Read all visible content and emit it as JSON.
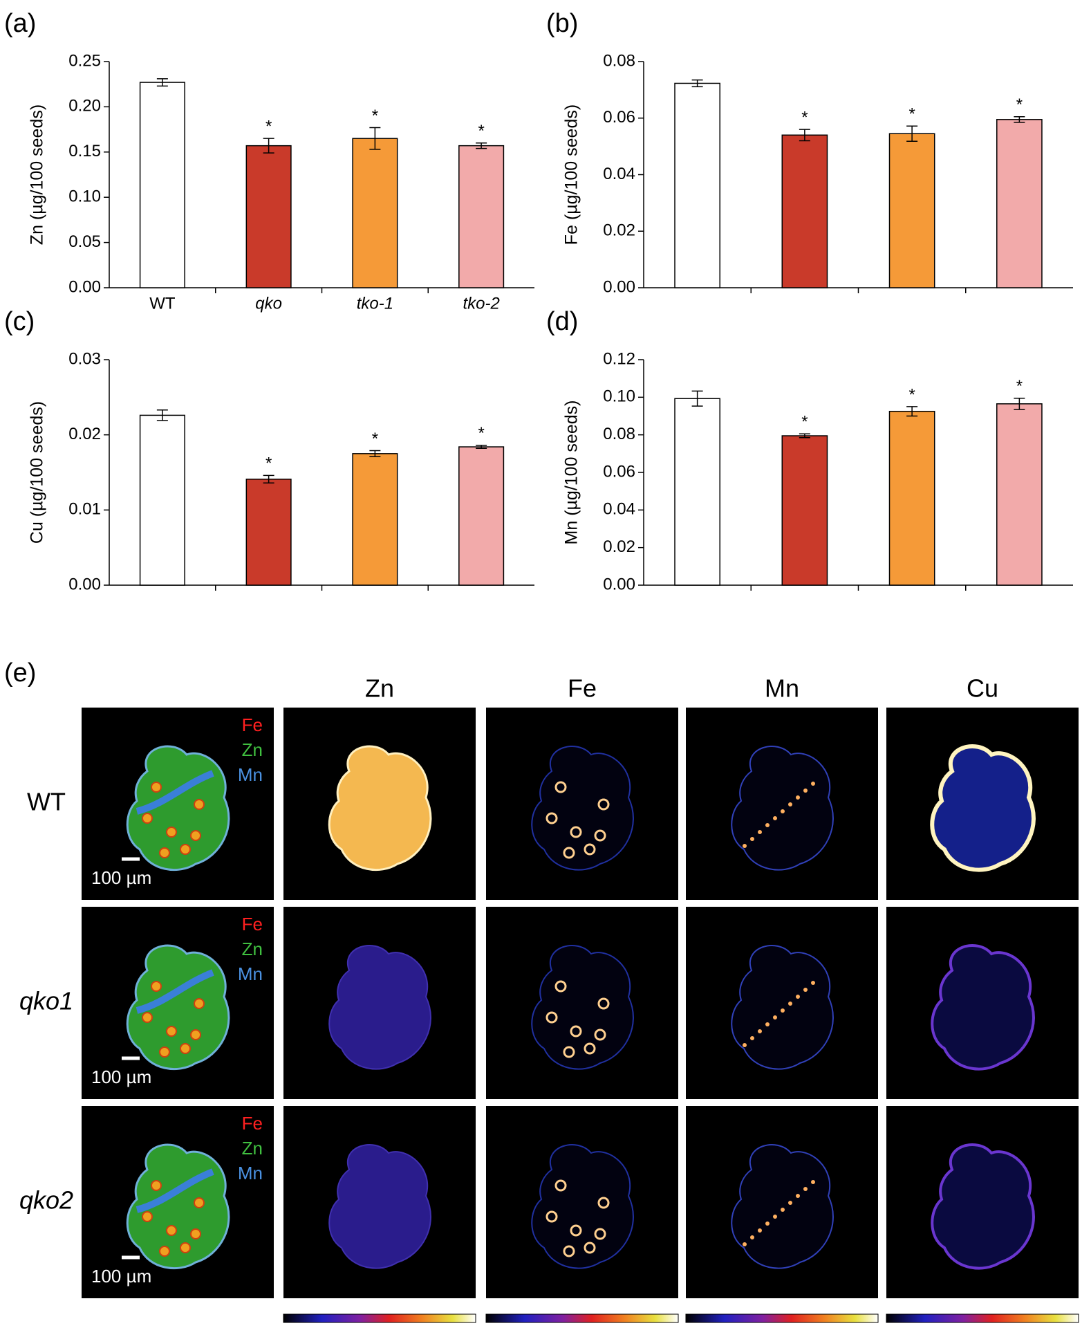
{
  "chart_data": [
    {
      "type": "bar",
      "panel_label": "(a)",
      "y_label": "Zn (µg/100 seeds)",
      "categories": [
        "WT",
        "qko",
        "tko-1",
        "tko-2"
      ],
      "values": [
        0.227,
        0.157,
        0.165,
        0.157
      ],
      "errors": [
        0.004,
        0.008,
        0.012,
        0.003
      ],
      "annotations": [
        null,
        "*",
        "*",
        "*"
      ],
      "colors": [
        "#ffffff",
        "#c93a2a",
        "#f59a38",
        "#f2aaaa"
      ],
      "ylim": [
        0,
        0.25
      ],
      "yticks": [
        {
          "value": 0,
          "label": "0.00"
        },
        0.05,
        {
          "value": 0.1,
          "label": "0.10"
        },
        0.15,
        {
          "value": 0.2,
          "label": "0.20"
        },
        0.25
      ]
    },
    {
      "type": "bar",
      "panel_label": "(b)",
      "y_label": "Fe (µg/100 seeds)",
      "categories": [
        null,
        null,
        null,
        null
      ],
      "values": [
        0.0723,
        0.054,
        0.0545,
        0.0595
      ],
      "errors": [
        0.0012,
        0.002,
        0.0027,
        0.001
      ],
      "annotations": [
        null,
        "*",
        "*",
        "*"
      ],
      "colors": [
        "#ffffff",
        "#c93a2a",
        "#f59a38",
        "#f2aaaa"
      ],
      "ylim": [
        0,
        0.08
      ],
      "yticks": [
        {
          "value": 0,
          "label": "0.00"
        },
        0.02,
        0.04,
        0.06,
        0.08
      ]
    },
    {
      "type": "bar",
      "panel_label": "(c)",
      "y_label": "Cu (µg/100 seeds)",
      "categories": [
        null,
        null,
        null,
        null
      ],
      "values": [
        0.0226,
        0.0141,
        0.0175,
        0.0184
      ],
      "errors": [
        0.0007,
        0.0005,
        0.0004,
        0.0002
      ],
      "annotations": [
        null,
        "*",
        "*",
        "*"
      ],
      "colors": [
        "#ffffff",
        "#c93a2a",
        "#f59a38",
        "#f2aaaa"
      ],
      "ylim": [
        0,
        0.03
      ],
      "yticks": [
        {
          "value": 0,
          "label": "0.00"
        },
        0.01,
        0.02,
        0.03
      ]
    },
    {
      "type": "bar",
      "panel_label": "(d)",
      "y_label": "Mn (µg/100 seeds)",
      "categories": [
        null,
        null,
        null,
        null
      ],
      "values": [
        0.0993,
        0.0795,
        0.0925,
        0.0965
      ],
      "errors": [
        0.004,
        0.001,
        0.0025,
        0.003
      ],
      "annotations": [
        null,
        "*",
        "*",
        "*"
      ],
      "colors": [
        "#ffffff",
        "#c93a2a",
        "#f59a38",
        "#f2aaaa"
      ],
      "ylim": [
        0,
        0.12
      ],
      "yticks": [
        {
          "value": 0,
          "label": "0.00"
        },
        0.02,
        0.04,
        0.06,
        0.08,
        {
          "value": 0.1,
          "label": "0.10"
        },
        0.12
      ]
    }
  ],
  "panel_e": {
    "label": "(e)",
    "columns": [
      "Zn",
      "Fe",
      "Mn",
      "Cu"
    ],
    "rows": [
      "WT",
      "qko1",
      "qko2"
    ],
    "channels": [
      "Fe",
      "Zn",
      "Mn"
    ],
    "scale_bar": "100 µm"
  }
}
